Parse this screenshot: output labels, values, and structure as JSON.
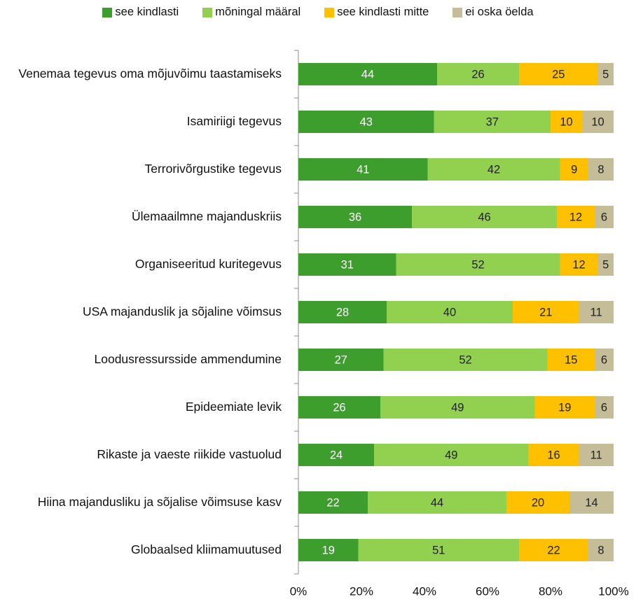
{
  "chart_data": {
    "type": "stacked-barh",
    "categories": [
      "Venemaa tegevus oma mõjuvõimu taastamiseks",
      "Isamiriigi tegevus",
      "Terrorivõrgustike tegevus",
      "Ülemaailmne majanduskriis",
      "Organiseeritud kuritegevus",
      "USA majanduslik ja sõjaline võimsus",
      "Loodusressursside ammendumine",
      "Epideemiate levik",
      "Rikaste ja vaeste riikide vastuolud",
      "Hiina majandusliku ja sõjalise võimsuse kasv",
      "Globaalsed kliimamuutused"
    ],
    "series": [
      {
        "name": "see kindlasti",
        "color": "#3e9e2d",
        "label_color": "#ffffff",
        "values": [
          44,
          43,
          41,
          36,
          31,
          28,
          27,
          26,
          24,
          22,
          19
        ]
      },
      {
        "name": "mõningal määral",
        "color": "#92d050",
        "label_color": "#222222",
        "values": [
          26,
          37,
          42,
          46,
          52,
          40,
          52,
          49,
          49,
          44,
          51
        ]
      },
      {
        "name": "see kindlasti mitte",
        "color": "#ffc000",
        "label_color": "#222222",
        "values": [
          25,
          10,
          9,
          12,
          12,
          21,
          15,
          19,
          16,
          20,
          22
        ]
      },
      {
        "name": "ei oska öelda",
        "color": "#c4bd97",
        "label_color": "#222222",
        "values": [
          5,
          10,
          8,
          6,
          5,
          11,
          6,
          6,
          11,
          14,
          8
        ]
      }
    ],
    "xlim": [
      0,
      100
    ],
    "xticks": [
      {
        "value": 0,
        "label": "0%"
      },
      {
        "value": 20,
        "label": "20%"
      },
      {
        "value": 40,
        "label": "40%"
      },
      {
        "value": 60,
        "label": "60%"
      },
      {
        "value": 80,
        "label": "80%"
      },
      {
        "value": 100,
        "label": "100%"
      }
    ],
    "legend": "top"
  }
}
